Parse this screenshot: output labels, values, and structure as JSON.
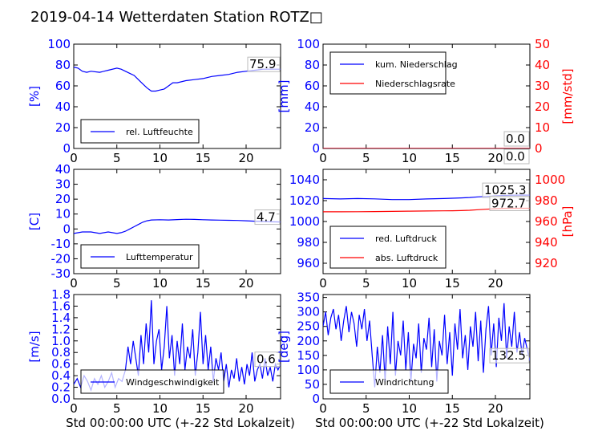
{
  "title": "2019-04-14 Wetterdaten Station ROTZ□",
  "colors": {
    "left_axis": "#0000ff",
    "right_axis": "#ff0000",
    "series_blue": "#0000ff",
    "series_red": "#ff0000",
    "frame": "#000000"
  },
  "chart_data": [
    {
      "type": "line",
      "xlim": [
        0,
        24
      ],
      "xticks": [
        0,
        5,
        10,
        15,
        20
      ],
      "ylabel": "[%]",
      "ylim": [
        0,
        100
      ],
      "yticks": [
        0,
        20,
        40,
        60,
        80,
        100
      ],
      "latest_label": "75.9",
      "legend": {
        "placement": "lower-left",
        "entries": [
          "rel. Luftfeuchte"
        ]
      },
      "series": [
        {
          "name": "rel. Luftfeuchte",
          "color": "#0000ff",
          "axis": "left",
          "x": [
            0,
            0.5,
            1,
            1.5,
            2,
            3,
            4,
            5,
            5.5,
            6,
            6.5,
            7,
            7.5,
            8,
            8.5,
            9,
            9.5,
            10,
            10.5,
            11,
            11.5,
            12,
            13,
            14,
            15,
            16,
            17,
            18,
            19,
            20,
            21,
            22,
            23,
            24
          ],
          "y": [
            78,
            77,
            74,
            73,
            74,
            73,
            75,
            77,
            76,
            74,
            72,
            70,
            66,
            62,
            58,
            55,
            55,
            56,
            57,
            60,
            63,
            63,
            65,
            66,
            67,
            69,
            70,
            71,
            73,
            74,
            75,
            76,
            76,
            76
          ]
        }
      ]
    },
    {
      "type": "line",
      "xlim": [
        0,
        24
      ],
      "xticks": [
        0,
        5,
        10,
        15,
        20
      ],
      "ylabel": "[mm]",
      "ylim": [
        0,
        100
      ],
      "yticks": [
        0,
        20,
        40,
        60,
        80,
        100
      ],
      "ylabel_right": "[mm/std]",
      "ylim_right": [
        0,
        50
      ],
      "yticks_right": [
        0,
        10,
        20,
        30,
        40,
        50
      ],
      "latest_labels": [
        "0.0",
        "0.0"
      ],
      "legend": {
        "placement": "top-left",
        "entries": [
          "kum. Niederschlag",
          "Niederschlagsrate"
        ]
      },
      "series": [
        {
          "name": "kum. Niederschlag",
          "color": "#0000ff",
          "axis": "left",
          "x": [
            0,
            24
          ],
          "y": [
            0,
            0
          ]
        },
        {
          "name": "Niederschlagsrate",
          "color": "#ff0000",
          "axis": "right",
          "x": [
            0,
            24
          ],
          "y": [
            0,
            0
          ]
        }
      ]
    },
    {
      "type": "line",
      "xlim": [
        0,
        24
      ],
      "xticks": [
        0,
        5,
        10,
        15,
        20
      ],
      "ylabel": "[C]",
      "ylim": [
        -30,
        40
      ],
      "yticks": [
        -30,
        -20,
        -10,
        0,
        10,
        20,
        30,
        40
      ],
      "latest_label": "4.7",
      "legend": {
        "placement": "lower-left",
        "entries": [
          "Lufttemperatur"
        ]
      },
      "series": [
        {
          "name": "Lufttemperatur",
          "color": "#0000ff",
          "axis": "left",
          "x": [
            0,
            1,
            2,
            3,
            4,
            5,
            5.5,
            6,
            6.5,
            7,
            7.5,
            8,
            8.5,
            9,
            10,
            11,
            12,
            13,
            14,
            15,
            16,
            17,
            18,
            19,
            20,
            21,
            22,
            23,
            24
          ],
          "y": [
            -3,
            -2,
            -2,
            -3,
            -2,
            -3,
            -2.5,
            -1.5,
            0,
            1.5,
            3,
            4.5,
            5.5,
            6,
            6.2,
            6,
            6.3,
            6.5,
            6.4,
            6.2,
            6,
            5.9,
            5.8,
            5.7,
            5.5,
            5.2,
            5,
            4.8,
            4.7
          ]
        }
      ]
    },
    {
      "type": "line",
      "xlim": [
        0,
        24
      ],
      "xticks": [
        0,
        5,
        10,
        15,
        20
      ],
      "ylabel": "",
      "ylim": [
        950,
        1050
      ],
      "yticks": [
        960,
        980,
        1000,
        1020,
        1040
      ],
      "ylabel_right": "[hPa]",
      "ylim_right": [
        910,
        1010
      ],
      "yticks_right": [
        920,
        940,
        960,
        980,
        1000
      ],
      "latest_labels": [
        "1025.3",
        "972.7"
      ],
      "legend": {
        "placement": "lower-left",
        "entries": [
          "red. Luftdruck",
          "abs. Luftdruck"
        ]
      },
      "series": [
        {
          "name": "red. Luftdruck",
          "color": "#0000ff",
          "axis": "left",
          "x": [
            0,
            2,
            4,
            6,
            8,
            10,
            12,
            14,
            15,
            16,
            17,
            18,
            19,
            20,
            21,
            22,
            23,
            24
          ],
          "y": [
            1022,
            1021.6,
            1022,
            1021.7,
            1021,
            1021,
            1021.6,
            1022,
            1022.3,
            1022.6,
            1023,
            1023.6,
            1024,
            1024.6,
            1025,
            1025.2,
            1025.3,
            1025.3
          ]
        },
        {
          "name": "abs. Luftdruck",
          "color": "#ff0000",
          "axis": "right",
          "x": [
            0,
            2,
            4,
            6,
            8,
            10,
            12,
            14,
            15,
            16,
            17,
            18,
            19,
            20,
            21,
            22,
            23,
            24
          ],
          "y": [
            969.3,
            969.3,
            969.4,
            969.5,
            969.7,
            969.9,
            970.1,
            970.2,
            970.3,
            970.5,
            970.8,
            971.3,
            971.8,
            972.3,
            972.6,
            972.7,
            972.7,
            972.7
          ]
        }
      ]
    },
    {
      "type": "line",
      "xlim": [
        0,
        24
      ],
      "xticks": [
        0,
        5,
        10,
        15,
        20
      ],
      "xlabel": "Std 00:00:00 UTC (+-22 Std Lokalzeit)",
      "ylabel": "[m/s]",
      "ylim": [
        0,
        1.8
      ],
      "yticks": [
        0.0,
        0.2,
        0.4,
        0.6,
        0.8,
        1.0,
        1.2,
        1.4,
        1.6,
        1.8
      ],
      "latest_label": "0.6",
      "legend": {
        "placement": "lower-center",
        "entries": [
          "Windgeschwindigkeit"
        ]
      },
      "series": [
        {
          "name": "Windgeschwindigkeit",
          "color": "#0000ff",
          "axis": "left",
          "x": [
            0,
            0.4,
            0.8,
            1.2,
            1.6,
            2,
            2.4,
            2.8,
            3.2,
            3.6,
            4,
            4.4,
            4.8,
            5.2,
            5.6,
            6,
            6.3,
            6.6,
            6.9,
            7.2,
            7.5,
            7.8,
            8.1,
            8.4,
            8.7,
            9,
            9.3,
            9.6,
            9.9,
            10.2,
            10.5,
            10.8,
            11.1,
            11.4,
            11.7,
            12,
            12.3,
            12.6,
            12.9,
            13.2,
            13.5,
            13.8,
            14.1,
            14.4,
            14.7,
            15,
            15.3,
            15.6,
            15.9,
            16.2,
            16.5,
            16.8,
            17.1,
            17.4,
            17.7,
            18,
            18.3,
            18.6,
            18.9,
            19.2,
            19.5,
            19.8,
            20.1,
            20.4,
            20.7,
            21,
            21.3,
            21.6,
            21.9,
            22.2,
            22.5,
            22.8,
            23.1,
            23.4,
            23.7,
            24
          ],
          "y": [
            0.25,
            0.35,
            0.2,
            0.4,
            0.3,
            0.15,
            0.35,
            0.25,
            0.4,
            0.2,
            0.3,
            0.45,
            0.2,
            0.35,
            0.3,
            0.5,
            0.9,
            0.6,
            1.0,
            0.7,
            0.4,
            1.1,
            0.6,
            1.3,
            0.8,
            1.7,
            0.6,
            1.0,
            1.2,
            0.5,
            0.9,
            1.6,
            0.7,
            1.1,
            0.4,
            1.0,
            0.6,
            1.3,
            0.5,
            0.9,
            0.7,
            1.2,
            0.4,
            0.8,
            1.5,
            0.6,
            1.1,
            0.5,
            0.9,
            0.3,
            0.7,
            0.5,
            0.8,
            0.3,
            0.6,
            0.2,
            0.5,
            0.35,
            0.7,
            0.3,
            0.55,
            0.25,
            0.6,
            0.4,
            0.8,
            0.3,
            0.5,
            0.6,
            0.35,
            0.7,
            0.4,
            0.55,
            0.3,
            0.6,
            0.5,
            0.6
          ]
        }
      ]
    },
    {
      "type": "line",
      "xlim": [
        0,
        24
      ],
      "xticks": [
        0,
        5,
        10,
        15,
        20
      ],
      "xlabel": "Std 00:00:00 UTC (+-22 Std Lokalzeit)",
      "ylabel": "[deg]",
      "ylim": [
        0,
        360
      ],
      "yticks": [
        0,
        50,
        100,
        150,
        200,
        250,
        300,
        350
      ],
      "latest_label": "132.5",
      "legend": {
        "placement": "lower-left",
        "entries": [
          "Windrichtung"
        ]
      },
      "series": [
        {
          "name": "Windrichtung",
          "color": "#0000ff",
          "axis": "left",
          "x": [
            0,
            0.3,
            0.6,
            0.9,
            1.2,
            1.5,
            1.8,
            2.1,
            2.4,
            2.7,
            3,
            3.3,
            3.6,
            3.9,
            4.2,
            4.5,
            4.8,
            5.1,
            5.4,
            5.7,
            6,
            6.3,
            6.6,
            6.9,
            7.2,
            7.5,
            7.8,
            8.1,
            8.4,
            8.7,
            9,
            9.3,
            9.6,
            9.9,
            10.2,
            10.5,
            10.8,
            11.1,
            11.4,
            11.7,
            12,
            12.3,
            12.6,
            12.9,
            13.2,
            13.5,
            13.8,
            14.1,
            14.4,
            14.7,
            15,
            15.3,
            15.6,
            15.9,
            16.2,
            16.5,
            16.8,
            17.1,
            17.4,
            17.7,
            18,
            18.3,
            18.6,
            18.9,
            19.2,
            19.5,
            19.8,
            20.1,
            20.4,
            20.7,
            21,
            21.3,
            21.6,
            21.9,
            22.2,
            22.5,
            22.8,
            23.1,
            23.4,
            23.7,
            24
          ],
          "y": [
            250,
            300,
            220,
            280,
            310,
            240,
            290,
            200,
            270,
            320,
            230,
            300,
            260,
            180,
            290,
            240,
            310,
            200,
            270,
            150,
            40,
            180,
            90,
            220,
            60,
            250,
            120,
            300,
            80,
            200,
            150,
            270,
            100,
            230,
            60,
            190,
            140,
            260,
            90,
            210,
            170,
            280,
            110,
            240,
            60,
            200,
            150,
            290,
            120,
            230,
            80,
            260,
            170,
            310,
            140,
            220,
            100,
            250,
            180,
            300,
            130,
            270,
            90,
            240,
            320,
            150,
            260,
            110,
            280,
            200,
            330,
            140,
            250,
            180,
            300,
            160,
            230,
            150,
            210,
            170,
            132.5
          ]
        }
      ]
    }
  ]
}
